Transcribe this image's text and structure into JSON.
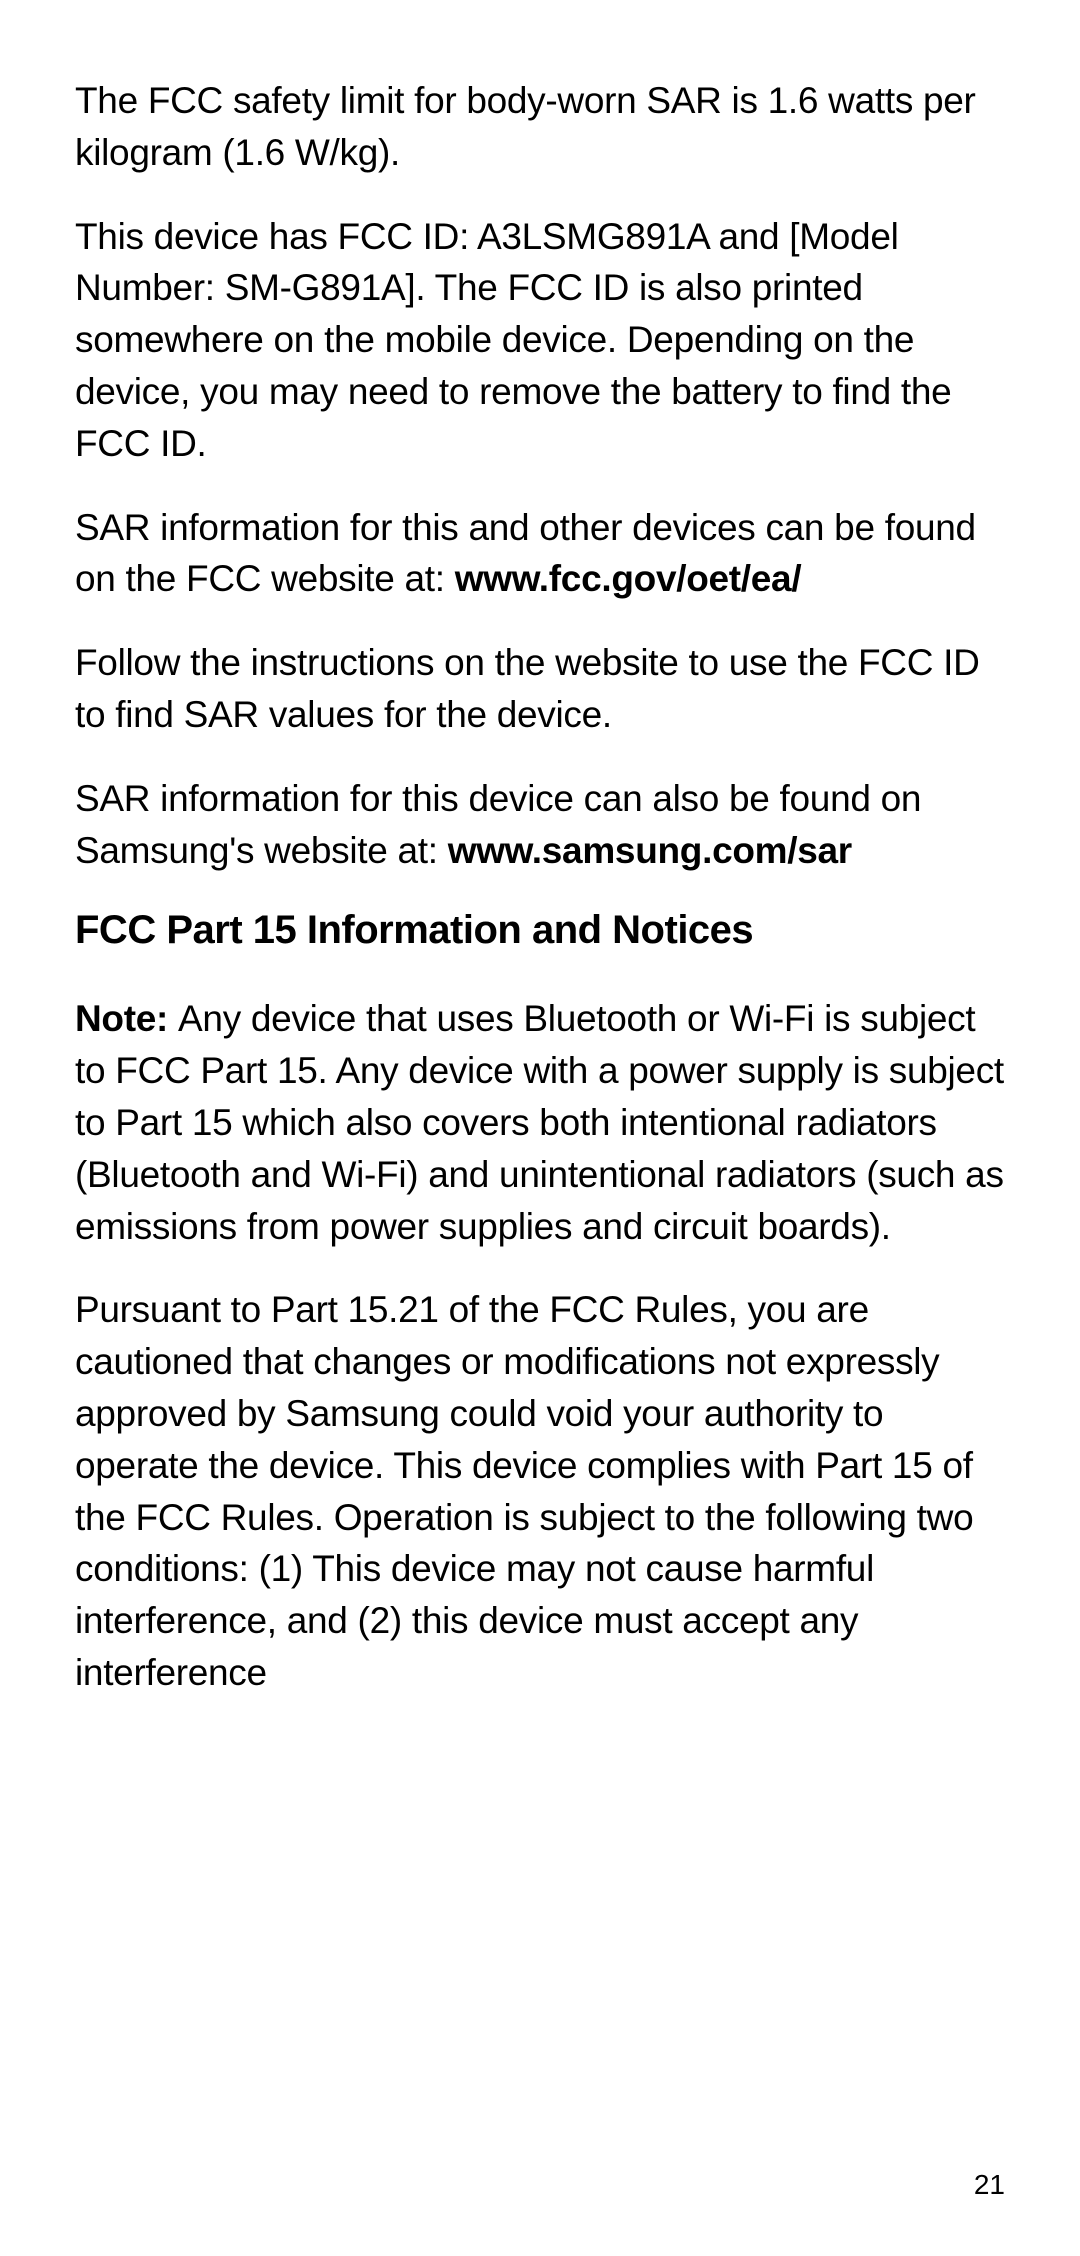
{
  "paragraphs": {
    "p1": "The FCC safety limit for body-worn SAR is 1.6 watts per kilogram (1.6 W/kg).",
    "p2": "This device has FCC ID: A3LSMG891A and [Model Number: SM-G891A]. The FCC ID is also printed somewhere on the mobile device. Depending on the device, you may need to remove the battery to find the FCC ID.",
    "p3_text": "SAR information for this and other devices can be found on the FCC website at: ",
    "p3_link": "www.fcc.gov/oet/ea/",
    "p4": "Follow the instructions on the website to use the FCC ID to find SAR values for the device.",
    "p5_text": "SAR information for this device can also be found on Samsung's website at: ",
    "p5_link": "www.samsung.com/sar",
    "heading": "FCC Part 15 Information and Notices",
    "p6_note": "Note: ",
    "p6_text": "Any device that uses Bluetooth or Wi-Fi is subject to FCC Part 15. Any device with a power supply is subject to Part 15 which also covers both intentional radiators (Bluetooth and Wi-Fi) and unintentional radiators (such as emissions from power supplies and circuit boards).",
    "p7": "Pursuant to Part 15.21 of the FCC Rules, you are cautioned that changes or modifications not expressly approved by Samsung could void your authority to operate the device. This device complies with Part 15 of the FCC Rules. Operation is subject to the following two conditions: (1) This device may not cause harmful interference, and (2) this device must accept any interference"
  },
  "page_number": "21"
}
